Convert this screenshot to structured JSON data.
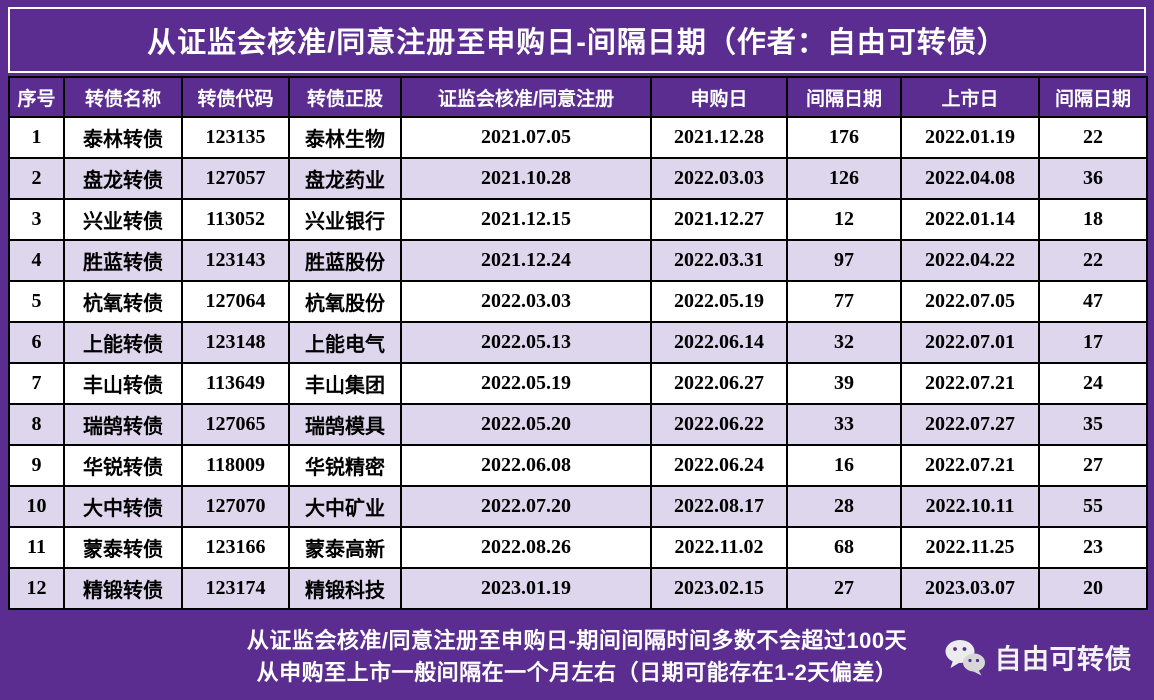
{
  "title": "从证监会核准/同意注册至申购日-间隔日期（作者：自由可转债）",
  "chart_data": {
    "type": "table",
    "title": "从证监会核准/同意注册至申购日-间隔日期",
    "columns": [
      "序号",
      "转债名称",
      "转债代码",
      "转债正股",
      "证监会核准/同意注册",
      "申购日",
      "间隔日期",
      "上市日",
      "间隔日期"
    ],
    "rows": [
      [
        "1",
        "泰林转债",
        "123135",
        "泰林生物",
        "2021.07.05",
        "2021.12.28",
        "176",
        "2022.01.19",
        "22"
      ],
      [
        "2",
        "盘龙转债",
        "127057",
        "盘龙药业",
        "2021.10.28",
        "2022.03.03",
        "126",
        "2022.04.08",
        "36"
      ],
      [
        "3",
        "兴业转债",
        "113052",
        "兴业银行",
        "2021.12.15",
        "2021.12.27",
        "12",
        "2022.01.14",
        "18"
      ],
      [
        "4",
        "胜蓝转债",
        "123143",
        "胜蓝股份",
        "2021.12.24",
        "2022.03.31",
        "97",
        "2022.04.22",
        "22"
      ],
      [
        "5",
        "杭氧转债",
        "127064",
        "杭氧股份",
        "2022.03.03",
        "2022.05.19",
        "77",
        "2022.07.05",
        "47"
      ],
      [
        "6",
        "上能转债",
        "123148",
        "上能电气",
        "2022.05.13",
        "2022.06.14",
        "32",
        "2022.07.01",
        "17"
      ],
      [
        "7",
        "丰山转债",
        "113649",
        "丰山集团",
        "2022.05.19",
        "2022.06.27",
        "39",
        "2022.07.21",
        "24"
      ],
      [
        "8",
        "瑞鹄转债",
        "127065",
        "瑞鹄模具",
        "2022.05.20",
        "2022.06.22",
        "33",
        "2022.07.27",
        "35"
      ],
      [
        "9",
        "华锐转债",
        "118009",
        "华锐精密",
        "2022.06.08",
        "2022.06.24",
        "16",
        "2022.07.21",
        "27"
      ],
      [
        "10",
        "大中转债",
        "127070",
        "大中矿业",
        "2022.07.20",
        "2022.08.17",
        "28",
        "2022.10.11",
        "55"
      ],
      [
        "11",
        "蒙泰转债",
        "123166",
        "蒙泰高新",
        "2022.08.26",
        "2022.11.02",
        "68",
        "2022.11.25",
        "23"
      ],
      [
        "12",
        "精锻转债",
        "123174",
        "精锻科技",
        "2023.01.19",
        "2023.02.15",
        "27",
        "2023.03.07",
        "20"
      ]
    ],
    "layout_hints": {
      "grid": "on",
      "striped_rows": true,
      "header_position": "top"
    }
  },
  "footer": {
    "line1": "从证监会核准/同意注册至申购日-期间间隔时间多数不会超过100天",
    "line2": "从申购至上市一般间隔在一个月左右（日期可能存在1-2天偏差）",
    "brand": "自由可转债",
    "icon": "wechat-icon"
  },
  "colors": {
    "background": "#5B2D90",
    "header_bg": "#5B2D90",
    "row_base": "#FFFFFF",
    "row_alt": "#DDD6EC",
    "border": "#000000",
    "title_text": "#FFFFFF",
    "cell_text": "#000000"
  }
}
